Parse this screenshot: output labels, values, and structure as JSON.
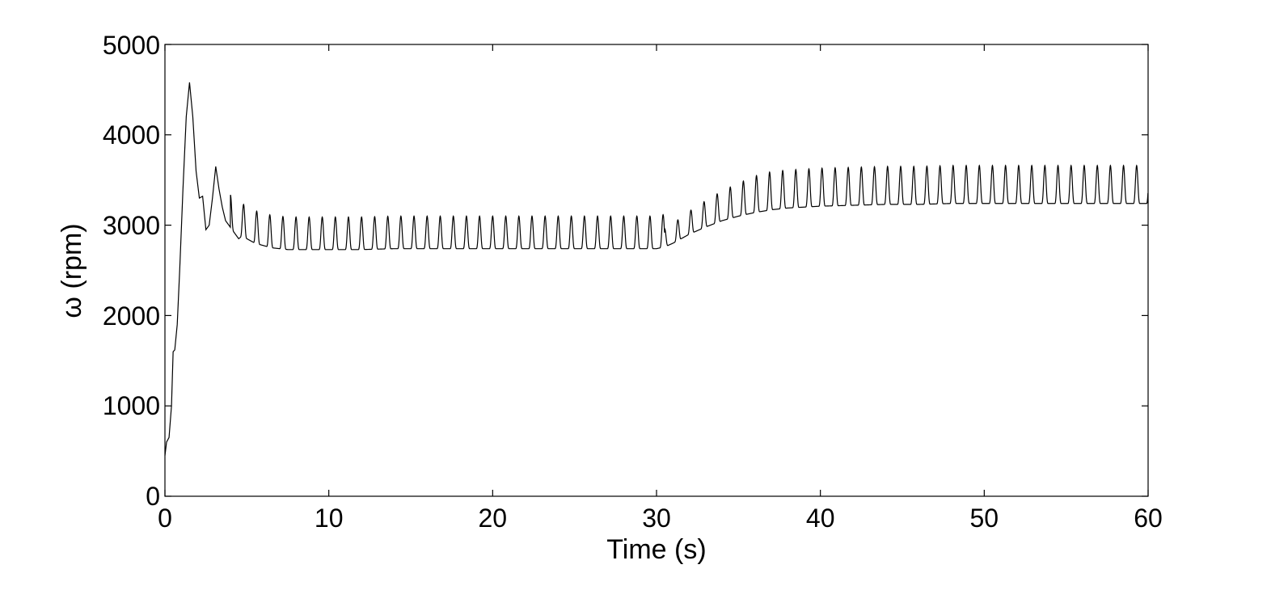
{
  "chart_data": {
    "type": "line",
    "title": "",
    "xlabel": "Time (s)",
    "ylabel": "ω (rpm)",
    "xlim": [
      0,
      60
    ],
    "ylim": [
      0,
      5000
    ],
    "xticks": [
      "0",
      "10",
      "20",
      "30",
      "40",
      "50",
      "60"
    ],
    "yticks": [
      "0",
      "1000",
      "2000",
      "3000",
      "4000",
      "5000"
    ],
    "grid": false,
    "legend": "none",
    "series": [
      {
        "color": "#000000",
        "x": [
          0,
          0.1,
          0.25,
          0.4,
          0.5,
          0.6,
          0.75,
          0.9,
          1.1,
          1.3,
          1.5,
          1.7,
          1.9,
          2.1,
          2.3,
          2.5,
          2.7,
          2.9,
          3.1,
          3.3,
          3.5,
          3.7,
          3.9,
          4.1,
          4.3,
          4.5,
          4.7,
          4.9,
          5.1,
          5.3,
          5.5,
          5.7,
          5.9,
          6.1,
          6.3,
          6.5,
          7,
          7.5,
          8,
          8.5,
          9,
          9.5,
          10,
          12,
          14,
          16,
          18,
          20,
          22,
          24,
          26,
          28,
          30,
          30.5,
          31,
          32,
          33,
          34,
          35,
          36,
          37,
          38,
          39,
          40,
          42,
          44,
          46,
          48,
          50,
          52,
          54,
          56,
          58,
          60
        ],
        "y": [
          450,
          600,
          650,
          1000,
          1600,
          1620,
          1900,
          2500,
          3400,
          4200,
          4580,
          4200,
          3600,
          3300,
          3320,
          2950,
          3000,
          3300,
          3650,
          3400,
          3200,
          3050,
          3000,
          2950,
          2900,
          2850,
          2880,
          2860,
          2840,
          2820,
          2800,
          2790,
          2780,
          2770,
          2760,
          2750,
          2740,
          2730,
          2730,
          2730,
          2730,
          2730,
          2730,
          2730,
          2740,
          2740,
          2740,
          2740,
          2740,
          2740,
          2740,
          2740,
          2740,
          2760,
          2800,
          2900,
          2980,
          3050,
          3100,
          3140,
          3170,
          3190,
          3200,
          3210,
          3220,
          3230,
          3230,
          3240,
          3240,
          3240,
          3240,
          3240,
          3240,
          3240
        ]
      }
    ],
    "oscillation": {
      "segments": [
        {
          "from": 4.0,
          "to": 30.5,
          "period": 0.8,
          "amplitude": 360
        },
        {
          "from": 30.5,
          "to": 60,
          "period": 0.8,
          "amplitude": 420
        }
      ]
    }
  }
}
